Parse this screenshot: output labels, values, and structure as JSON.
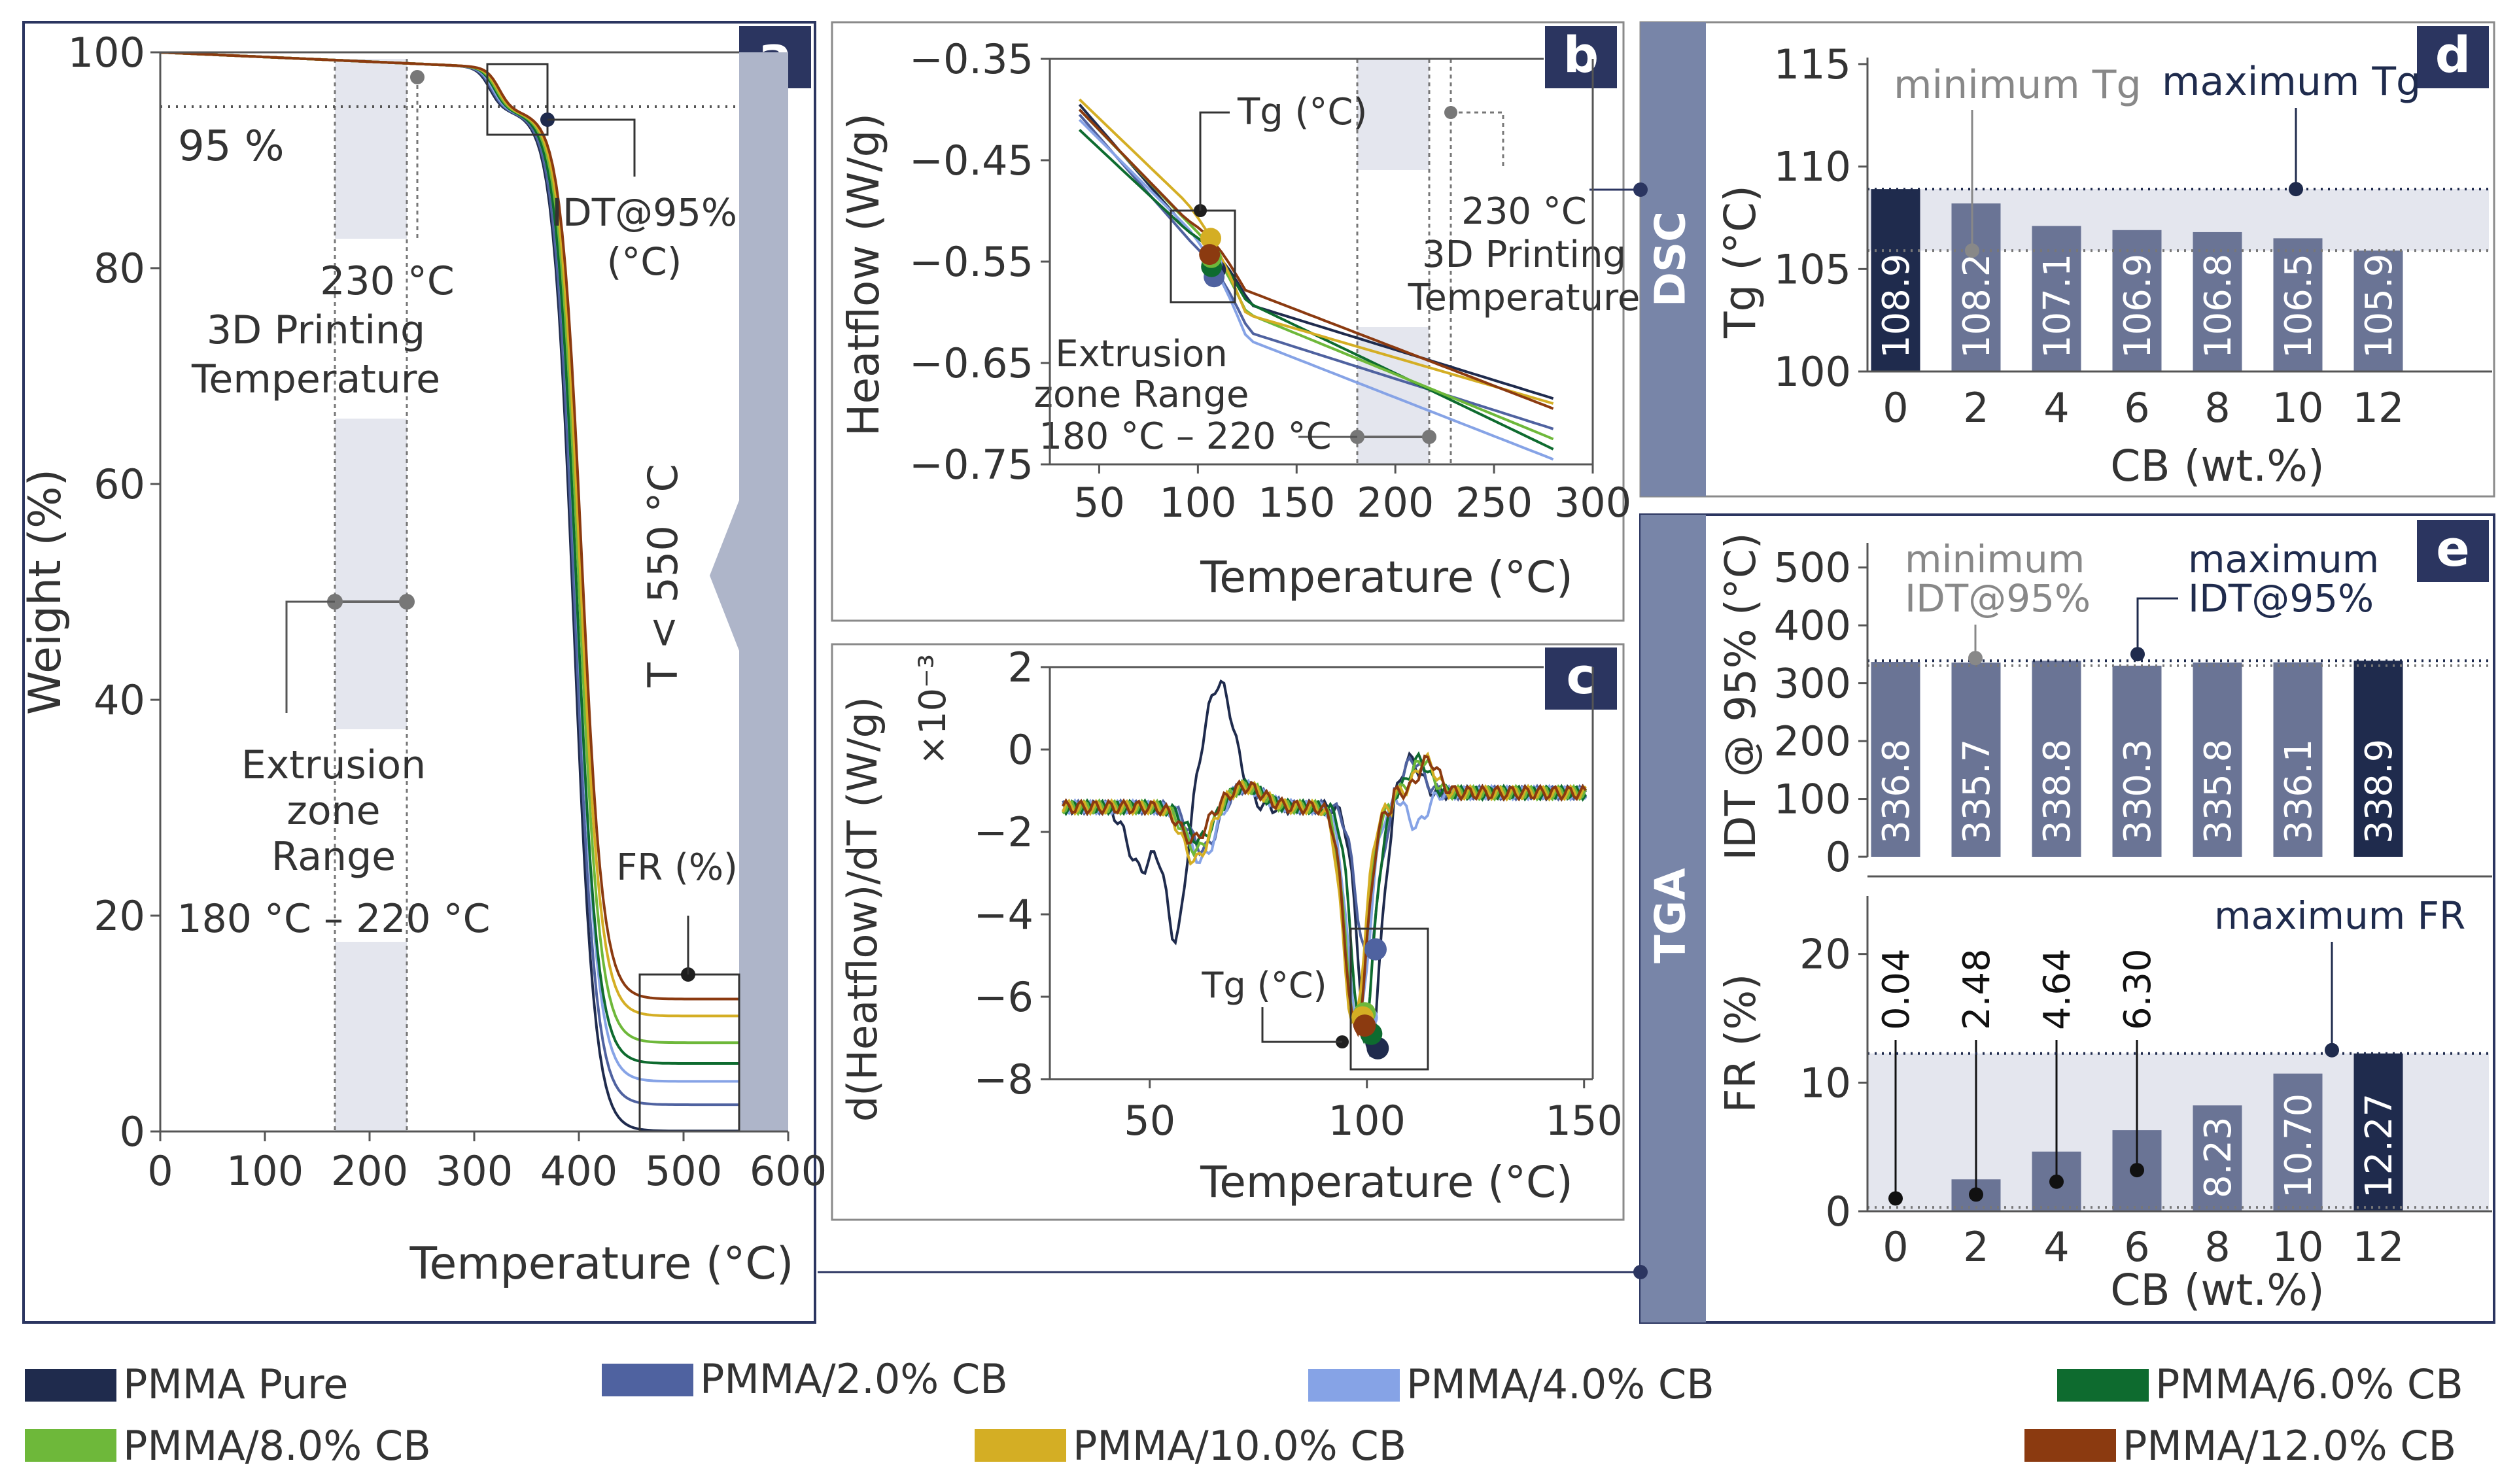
{
  "figure": {
    "accent_dark": "#1f2b4d",
    "panel_tag_bg": "#2b3560",
    "side_tab_bg": "#7885a8",
    "highlight_bg": "#e4e6ee"
  },
  "legend": [
    {
      "label": "PMMA Pure",
      "color": "#1f2b4d"
    },
    {
      "label": "PMMA/2.0% CB",
      "color": "#4f62a0"
    },
    {
      "label": "PMMA/4.0% CB",
      "color": "#86a3e6"
    },
    {
      "label": "PMMA/6.0% CB",
      "color": "#0e6b2f"
    },
    {
      "label": "PMMA/8.0% CB",
      "color": "#6eb83a"
    },
    {
      "label": "PMMA/10.0% CB",
      "color": "#d4ae24"
    },
    {
      "label": "PMMA/12.0% CB",
      "color": "#8b3a10"
    }
  ],
  "chart_data": [
    {
      "id": "a",
      "type": "line",
      "tag": "a",
      "xlabel": "Temperature (°C)",
      "ylabel": "Weight (%)",
      "xlim": [
        0,
        600
      ],
      "ylim": [
        0,
        100
      ],
      "xticks": [
        0,
        100,
        200,
        300,
        400,
        500,
        600
      ],
      "yticks": [
        0,
        20,
        40,
        60,
        80,
        100
      ],
      "ref_label": "95 %",
      "print_label": [
        "230 °C",
        "3D Printing",
        "Temperature"
      ],
      "extrusion_label": [
        "Extrusion",
        "zone",
        "Range",
        "180 °C – 220 °C"
      ],
      "idt_label": [
        "IDT@95%",
        "(°C)"
      ],
      "fr_label": "FR (%)",
      "limit_label": "T < 550 °C",
      "series": [
        {
          "name": "PMMA Pure",
          "residue": 0.04,
          "idt": 336.8
        },
        {
          "name": "PMMA/2.0% CB",
          "residue": 2.48,
          "idt": 335.7
        },
        {
          "name": "PMMA/4.0% CB",
          "residue": 4.64,
          "idt": 338.8
        },
        {
          "name": "PMMA/6.0% CB",
          "residue": 6.3,
          "idt": 330.3
        },
        {
          "name": "PMMA/8.0% CB",
          "residue": 8.23,
          "idt": 335.8
        },
        {
          "name": "PMMA/10.0% CB",
          "residue": 10.7,
          "idt": 336.1
        },
        {
          "name": "PMMA/12.0% CB",
          "residue": 12.27,
          "idt": 338.9
        }
      ]
    },
    {
      "id": "b",
      "type": "line",
      "tag": "b",
      "xlabel": "Temperature (°C)",
      "ylabel": "Heatflow (W/g)",
      "xlim": [
        25,
        300
      ],
      "ylim": [
        -0.75,
        -0.35
      ],
      "xticks": [
        50,
        100,
        150,
        200,
        250,
        300
      ],
      "yticks": [
        -0.35,
        -0.45,
        -0.55,
        -0.65,
        -0.75
      ],
      "ytick_labels": [
        "−0.35",
        "−0.45",
        "−0.55",
        "−0.65",
        "−0.75"
      ],
      "tg_label": "Tg (°C)",
      "print_label": [
        "230 °C",
        "3D Printing",
        "Temperature"
      ],
      "extrusion_label": [
        "Extrusion",
        "zone Range",
        "180 °C – 220 °C"
      ],
      "series": [
        {
          "name": "PMMA Pure",
          "y_start": -0.395,
          "y_end": -0.685,
          "tg": 108.9,
          "tg_y": -0.558
        },
        {
          "name": "PMMA/2.0% CB",
          "y_start": -0.405,
          "y_end": -0.715,
          "tg": 108.2,
          "tg_y": -0.565
        },
        {
          "name": "PMMA/4.0% CB",
          "y_start": -0.41,
          "y_end": -0.745,
          "tg": 107.1,
          "tg_y": -0.552
        },
        {
          "name": "PMMA/6.0% CB",
          "y_start": -0.42,
          "y_end": -0.735,
          "tg": 106.9,
          "tg_y": -0.555
        },
        {
          "name": "PMMA/8.0% CB",
          "y_start": -0.4,
          "y_end": -0.725,
          "tg": 106.8,
          "tg_y": -0.546
        },
        {
          "name": "PMMA/10.0% CB",
          "y_start": -0.39,
          "y_end": -0.69,
          "tg": 106.5,
          "tg_y": -0.527
        },
        {
          "name": "PMMA/12.0% CB",
          "y_start": -0.4,
          "y_end": -0.695,
          "tg": 105.9,
          "tg_y": -0.543
        }
      ]
    },
    {
      "id": "c",
      "type": "line",
      "tag": "c",
      "xlabel": "Temperature (°C)",
      "ylabel": "d(Heatflow)/dT (W/g)",
      "exponent_label": "×10⁻³",
      "xlim": [
        27,
        152
      ],
      "ylim": [
        -8,
        2
      ],
      "xticks": [
        50,
        100,
        150
      ],
      "yticks": [
        2,
        0,
        -2,
        -4,
        -6,
        -8
      ],
      "ytick_labels": [
        "2",
        "0",
        "−2",
        "−4",
        "−6",
        "−8"
      ],
      "tg_label": "Tg (°C)",
      "tg_points": [
        {
          "name": "PMMA Pure",
          "x": 102.5,
          "y": -7.25
        },
        {
          "name": "PMMA/2.0% CB",
          "x": 102.0,
          "y": -4.85
        },
        {
          "name": "PMMA/4.0% CB",
          "x": 100.0,
          "y": -6.5
        },
        {
          "name": "PMMA/6.0% CB",
          "x": 101.0,
          "y": -6.9
        },
        {
          "name": "PMMA/8.0% CB",
          "x": 99.5,
          "y": -6.4
        },
        {
          "name": "PMMA/10.0% CB",
          "x": 99.0,
          "y": -6.5
        },
        {
          "name": "PMMA/12.0% CB",
          "x": 99.5,
          "y": -6.7
        }
      ]
    },
    {
      "id": "d",
      "type": "bar",
      "tag": "d",
      "side_tab": "DSC",
      "xlabel": "CB (wt.%)",
      "ylabel": "Tg (°C)",
      "categories": [
        "0",
        "2",
        "4",
        "6",
        "8",
        "10",
        "12"
      ],
      "values": [
        108.9,
        108.2,
        107.1,
        106.9,
        106.8,
        106.5,
        105.9
      ],
      "value_labels": [
        "108.9",
        "108.2",
        "107.1",
        "106.9",
        "106.8",
        "106.5",
        "105.9"
      ],
      "ylim": [
        100,
        115
      ],
      "yticks": [
        100,
        105,
        110,
        115
      ],
      "min_label": "minimum Tg",
      "max_label": "maximum Tg"
    },
    {
      "id": "e_top",
      "type": "bar",
      "tag": "e",
      "side_tab": "TGA",
      "xlabel": "",
      "ylabel": "IDT @ 95% (°C)",
      "categories": [
        "0",
        "2",
        "4",
        "6",
        "8",
        "10",
        "12"
      ],
      "values": [
        336.8,
        335.7,
        338.8,
        330.3,
        335.8,
        336.1,
        338.9
      ],
      "value_labels": [
        "336.8",
        "335.7",
        "338.8",
        "330.3",
        "335.8",
        "336.1",
        "338.9"
      ],
      "ylim": [
        0,
        520
      ],
      "yticks": [
        0,
        100,
        200,
        300,
        400,
        500
      ],
      "min_label": [
        "minimum",
        "IDT@95%"
      ],
      "max_label": [
        "maximum",
        "IDT@95%"
      ]
    },
    {
      "id": "e_bottom",
      "type": "bar",
      "xlabel": "CB (wt.%)",
      "ylabel": "FR (%)",
      "categories": [
        "0",
        "2",
        "4",
        "6",
        "8",
        "10",
        "12"
      ],
      "values": [
        0.04,
        2.48,
        4.64,
        6.3,
        8.23,
        10.7,
        12.27
      ],
      "value_labels": [
        "0.04",
        "2.48",
        "4.64",
        "6.30",
        "8.23",
        "10.70",
        "12.27"
      ],
      "ylim": [
        0,
        24
      ],
      "yticks": [
        0,
        10,
        20
      ],
      "max_label": "maximum FR"
    }
  ]
}
